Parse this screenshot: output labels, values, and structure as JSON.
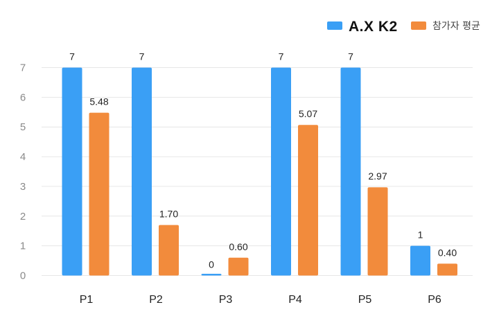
{
  "chart_data": {
    "type": "bar",
    "categories": [
      "P1",
      "P2",
      "P3",
      "P4",
      "P5",
      "P6"
    ],
    "series": [
      {
        "name": "A.X K2",
        "color": "#3a9ff5",
        "values": [
          7,
          7,
          0,
          7,
          7,
          1
        ],
        "labels": [
          "7",
          "7",
          "0",
          "7",
          "7",
          "1"
        ]
      },
      {
        "name": "참가자 평균",
        "color": "#f28b3c",
        "values": [
          5.48,
          1.7,
          0.6,
          5.07,
          2.97,
          0.4
        ],
        "labels": [
          "5.48",
          "1.70",
          "0.60",
          "5.07",
          "2.97",
          "0.40"
        ]
      }
    ],
    "yticks": [
      "0",
      "1",
      "2",
      "3",
      "4",
      "5",
      "6",
      "7"
    ],
    "ylim": [
      0,
      7
    ],
    "grid": true,
    "legend_position": "top-right",
    "title": "",
    "xlabel": "",
    "ylabel": ""
  }
}
